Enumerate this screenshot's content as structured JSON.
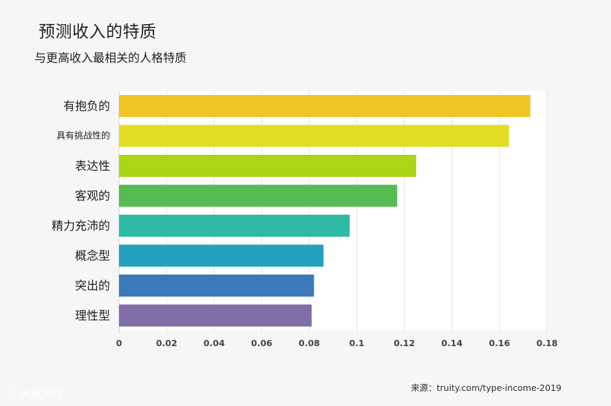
{
  "chart_data": {
    "type": "bar",
    "orientation": "horizontal",
    "title": "预测收入的特质",
    "subtitle": "与更高收入最相关的人格特质",
    "categories": [
      "有抱负的",
      "具有挑战性的",
      "表达性",
      "客观的",
      "精力充沛的",
      "概念型",
      "突出的",
      "理性型"
    ],
    "values": [
      0.173,
      0.164,
      0.125,
      0.117,
      0.097,
      0.086,
      0.082,
      0.081
    ],
    "colors": [
      "#f0c425",
      "#e3de25",
      "#a9d713",
      "#56bb51",
      "#2fbaa6",
      "#23a1be",
      "#3b79bb",
      "#7f6ea8"
    ],
    "xlim": [
      0,
      0.18
    ],
    "xticks": [
      "0",
      "0.02",
      "0.04",
      "0.06",
      "0.08",
      "0.1",
      "0.12",
      "0.14",
      "0.16",
      "0.18"
    ],
    "xlabel": "",
    "ylabel": "",
    "grid": true
  },
  "source": "来源：truity.com/type-income-2019",
  "watermark": "大数跨境"
}
